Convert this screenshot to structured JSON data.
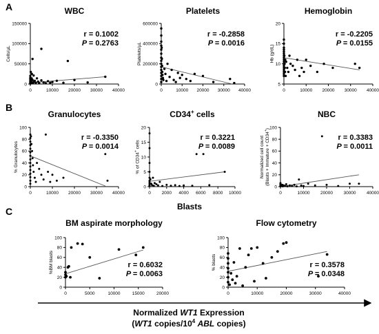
{
  "figure": {
    "panel_labels": [
      "A",
      "B",
      "C"
    ],
    "blasts_heading": "Blasts",
    "bottom_axis": {
      "line1_prefix": "Normalized ",
      "line1_gene": "WT1",
      "line1_suffix": " Expression",
      "line2_open": "(",
      "line2_gene": "WT1",
      "line2_mid": " copies/10",
      "line2_exp": "4",
      "line2_sp": " ",
      "line2_abl": "ABL",
      "line2_close": " copies)"
    },
    "colors": {
      "points": "#000000",
      "trendline": "#555555",
      "axis": "#000000"
    }
  },
  "chart_data": [
    {
      "type": "scatter",
      "title": "WBC",
      "ylabel": "Cells/µL",
      "xlim": [
        0,
        40000
      ],
      "ylim": [
        0,
        150000
      ],
      "xticks": [
        "0",
        "10000",
        "20000",
        "30000",
        "40000"
      ],
      "yticks": [
        "0",
        "50000",
        "100000",
        "150000"
      ],
      "r_label": "r = 0.1002",
      "p_label": "= 0.2763",
      "trend": [
        [
          0,
          3000
        ],
        [
          34000,
          18000
        ]
      ],
      "points": [
        [
          0,
          1000
        ],
        [
          0,
          3000
        ],
        [
          0,
          5000
        ],
        [
          0,
          8000
        ],
        [
          0,
          12000
        ],
        [
          0,
          15000
        ],
        [
          0,
          20000
        ],
        [
          200,
          2000
        ],
        [
          300,
          6000
        ],
        [
          400,
          9000
        ],
        [
          500,
          4000
        ],
        [
          600,
          14000
        ],
        [
          800,
          3000
        ],
        [
          1000,
          10000
        ],
        [
          1200,
          2000
        ],
        [
          1500,
          5000
        ],
        [
          2000,
          8000
        ],
        [
          2500,
          3000
        ],
        [
          3000,
          14000
        ],
        [
          3500,
          6000
        ],
        [
          4000,
          2000
        ],
        [
          5000,
          9000
        ],
        [
          6000,
          4000
        ],
        [
          7000,
          2000
        ],
        [
          8000,
          7000
        ],
        [
          9000,
          3000
        ],
        [
          10000,
          5000
        ],
        [
          12000,
          8000
        ],
        [
          15000,
          3000
        ],
        [
          17000,
          57000
        ],
        [
          20000,
          10000
        ],
        [
          26000,
          4000
        ],
        [
          34000,
          18000
        ],
        [
          1000,
          62000
        ],
        [
          200,
          30000
        ],
        [
          700,
          25000
        ],
        [
          1500,
          21000
        ],
        [
          5000,
          87000
        ]
      ]
    },
    {
      "type": "scatter",
      "title": "Platelets",
      "ylabel": "Platelets/µL",
      "xlim": [
        0,
        40000
      ],
      "ylim": [
        0,
        600000
      ],
      "xticks": [
        "0",
        "10000",
        "20000",
        "30000",
        "40000"
      ],
      "yticks": [
        "0",
        "200000",
        "400000",
        "600000"
      ],
      "r_label": "r = -0.2858",
      "p_label": "= 0.0016",
      "trend": [
        [
          0,
          170000
        ],
        [
          34000,
          0
        ]
      ],
      "points": [
        [
          0,
          550000
        ],
        [
          0,
          480000
        ],
        [
          0,
          420000
        ],
        [
          0,
          380000
        ],
        [
          0,
          340000
        ],
        [
          0,
          300000
        ],
        [
          0,
          260000
        ],
        [
          0,
          230000
        ],
        [
          0,
          200000
        ],
        [
          0,
          170000
        ],
        [
          0,
          140000
        ],
        [
          0,
          110000
        ],
        [
          0,
          80000
        ],
        [
          0,
          50000
        ],
        [
          0,
          20000
        ],
        [
          200,
          360000
        ],
        [
          300,
          250000
        ],
        [
          400,
          180000
        ],
        [
          500,
          120000
        ],
        [
          600,
          90000
        ],
        [
          800,
          60000
        ],
        [
          1000,
          40000
        ],
        [
          1500,
          150000
        ],
        [
          2000,
          100000
        ],
        [
          2500,
          30000
        ],
        [
          3000,
          200000
        ],
        [
          4000,
          70000
        ],
        [
          5000,
          140000
        ],
        [
          6000,
          40000
        ],
        [
          7000,
          20000
        ],
        [
          8000,
          110000
        ],
        [
          9000,
          60000
        ],
        [
          10000,
          90000
        ],
        [
          12000,
          50000
        ],
        [
          14000,
          30000
        ],
        [
          16000,
          100000
        ],
        [
          20000,
          80000
        ],
        [
          25000,
          20000
        ],
        [
          33000,
          50000
        ],
        [
          35000,
          10000
        ]
      ]
    },
    {
      "type": "scatter",
      "title": "Hemoglobin",
      "ylabel": "Hb (g/dL)",
      "xlim": [
        0,
        40000
      ],
      "ylim": [
        5,
        20
      ],
      "xticks": [
        "0",
        "10000",
        "20000",
        "30000",
        "40000"
      ],
      "yticks": [
        "5",
        "10",
        "15",
        "20"
      ],
      "r_label": "r = -0.2205",
      "p_label": "= 0.0155",
      "trend": [
        [
          0,
          11.5
        ],
        [
          34000,
          8.5
        ]
      ],
      "points": [
        [
          0,
          16
        ],
        [
          0,
          15
        ],
        [
          0,
          14
        ],
        [
          0,
          13.5
        ],
        [
          0,
          13
        ],
        [
          0,
          12.5
        ],
        [
          0,
          12
        ],
        [
          0,
          11.5
        ],
        [
          0,
          11
        ],
        [
          0,
          10.5
        ],
        [
          0,
          10
        ],
        [
          0,
          9.5
        ],
        [
          0,
          9
        ],
        [
          0,
          8.5
        ],
        [
          0,
          8
        ],
        [
          0,
          7.5
        ],
        [
          0,
          7
        ],
        [
          200,
          12
        ],
        [
          300,
          10
        ],
        [
          400,
          9
        ],
        [
          500,
          8
        ],
        [
          600,
          11
        ],
        [
          800,
          7
        ],
        [
          1000,
          10.5
        ],
        [
          1500,
          9
        ],
        [
          2000,
          8
        ],
        [
          2500,
          12
        ],
        [
          3000,
          10
        ],
        [
          4000,
          9.5
        ],
        [
          5000,
          8.5
        ],
        [
          6000,
          11
        ],
        [
          7000,
          7
        ],
        [
          8000,
          9
        ],
        [
          9000,
          8
        ],
        [
          10000,
          11
        ],
        [
          12000,
          9.5
        ],
        [
          15000,
          8
        ],
        [
          18000,
          10
        ],
        [
          22000,
          9
        ],
        [
          32000,
          10
        ],
        [
          34000,
          9
        ]
      ]
    },
    {
      "type": "scatter",
      "title": "Granulocytes",
      "ylabel": "% Granulocytes",
      "xlim": [
        0,
        40000
      ],
      "ylim": [
        0,
        100
      ],
      "xticks": [
        "0",
        "10000",
        "20000",
        "30000",
        "40000"
      ],
      "yticks": [
        "0",
        "20",
        "40",
        "60",
        "80",
        "100"
      ],
      "r_label": "r = -0.3350",
      "p_label": "= 0.0014",
      "trend": [
        [
          0,
          52
        ],
        [
          34000,
          1
        ]
      ],
      "points": [
        [
          0,
          88
        ],
        [
          0,
          82
        ],
        [
          0,
          76
        ],
        [
          0,
          70
        ],
        [
          0,
          64
        ],
        [
          0,
          58
        ],
        [
          0,
          52
        ],
        [
          0,
          46
        ],
        [
          0,
          40
        ],
        [
          0,
          34
        ],
        [
          0,
          28
        ],
        [
          0,
          22
        ],
        [
          0,
          16
        ],
        [
          0,
          10
        ],
        [
          0,
          5
        ],
        [
          300,
          85
        ],
        [
          500,
          72
        ],
        [
          800,
          60
        ],
        [
          1000,
          48
        ],
        [
          1200,
          36
        ],
        [
          1500,
          25
        ],
        [
          2000,
          15
        ],
        [
          2500,
          8
        ],
        [
          3000,
          40
        ],
        [
          4000,
          30
        ],
        [
          5000,
          20
        ],
        [
          6000,
          12
        ],
        [
          7000,
          88
        ],
        [
          8000,
          25
        ],
        [
          9000,
          8
        ],
        [
          10000,
          20
        ],
        [
          12000,
          10
        ],
        [
          15000,
          15
        ],
        [
          34000,
          55
        ],
        [
          35000,
          10
        ]
      ]
    },
    {
      "type": "scatter",
      "title": "CD34+ cells",
      "ylabel": "% of CD34+ cells",
      "xlim": [
        0,
        10000
      ],
      "ylim": [
        0,
        20
      ],
      "xticks": [
        "0",
        "2000",
        "4000",
        "6000",
        "8000",
        "10000"
      ],
      "yticks": [
        "0",
        "5",
        "10",
        "15",
        "20"
      ],
      "r_label": "r = 0.3221",
      "p_label": "= 0.0089",
      "trend": [
        [
          0,
          1.8
        ],
        [
          8800,
          5
        ]
      ],
      "points": [
        [
          0,
          18
        ],
        [
          0,
          13
        ],
        [
          0,
          8
        ],
        [
          0,
          5
        ],
        [
          0,
          3
        ],
        [
          0,
          2
        ],
        [
          0,
          1.5
        ],
        [
          0,
          1
        ],
        [
          0,
          0.5
        ],
        [
          0,
          0.2
        ],
        [
          100,
          2.5
        ],
        [
          200,
          1
        ],
        [
          300,
          0.5
        ],
        [
          400,
          3
        ],
        [
          500,
          0.3
        ],
        [
          600,
          1.2
        ],
        [
          800,
          0.8
        ],
        [
          1000,
          0.4
        ],
        [
          1200,
          1.6
        ],
        [
          1500,
          0.2
        ],
        [
          2000,
          0.6
        ],
        [
          2500,
          0.3
        ],
        [
          3000,
          0.5
        ],
        [
          3500,
          0.2
        ],
        [
          4000,
          0.4
        ],
        [
          5000,
          0.3
        ],
        [
          5500,
          11
        ],
        [
          6300,
          11
        ],
        [
          7000,
          0.5
        ],
        [
          8800,
          5
        ]
      ]
    },
    {
      "type": "scatter",
      "title": "NBC",
      "ylabel": "Normalized cell count (Blasts + Immature + CD34+)",
      "xlim": [
        0,
        40000
      ],
      "ylim": [
        0,
        100
      ],
      "xticks": [
        "0",
        "10000",
        "20000",
        "30000",
        "40000"
      ],
      "yticks": [
        "0",
        "20",
        "40",
        "60",
        "80",
        "100"
      ],
      "r_label": "r = 0.3383",
      "p_label": "= 0.0011",
      "trend": [
        [
          0,
          0
        ],
        [
          34000,
          20
        ]
      ],
      "points": [
        [
          0,
          5
        ],
        [
          0,
          3
        ],
        [
          0,
          2
        ],
        [
          0,
          1
        ],
        [
          0,
          0.5
        ],
        [
          0,
          4
        ],
        [
          0,
          6
        ],
        [
          300,
          2
        ],
        [
          500,
          1
        ],
        [
          800,
          3
        ],
        [
          1000,
          0.5
        ],
        [
          1500,
          2
        ],
        [
          2000,
          1
        ],
        [
          2500,
          4
        ],
        [
          3000,
          0.5
        ],
        [
          4000,
          2
        ],
        [
          5000,
          1
        ],
        [
          6000,
          3
        ],
        [
          7000,
          0.5
        ],
        [
          8000,
          12
        ],
        [
          9000,
          2
        ],
        [
          10000,
          1
        ],
        [
          12000,
          5
        ],
        [
          15000,
          2
        ],
        [
          18000,
          85
        ],
        [
          20000,
          3
        ],
        [
          25000,
          1
        ],
        [
          30000,
          5
        ],
        [
          34000,
          5
        ]
      ]
    },
    {
      "type": "scatter",
      "title": "BM aspirate morphology",
      "ylabel": "%BM blasts",
      "xlim": [
        0,
        20000
      ],
      "ylim": [
        0,
        100
      ],
      "xticks": [
        "0",
        "5000",
        "10000",
        "15000",
        "20000"
      ],
      "yticks": [
        "0",
        "20",
        "40",
        "60",
        "80",
        "100"
      ],
      "r_label": "r = 0.6032",
      "p_label": "= 0.0063",
      "trend": [
        [
          0,
          27
        ],
        [
          16000,
          75
        ]
      ],
      "points": [
        [
          0,
          20
        ],
        [
          0,
          25
        ],
        [
          0,
          30
        ],
        [
          200,
          22
        ],
        [
          500,
          40
        ],
        [
          700,
          42
        ],
        [
          1000,
          20
        ],
        [
          1200,
          80
        ],
        [
          2500,
          88
        ],
        [
          3500,
          87
        ],
        [
          5000,
          60
        ],
        [
          7000,
          18
        ],
        [
          11000,
          76
        ],
        [
          14500,
          65
        ],
        [
          16000,
          80
        ]
      ]
    },
    {
      "type": "scatter",
      "title": "Flow cytometry",
      "ylabel": "% blasts",
      "xlim": [
        0,
        40000
      ],
      "ylim": [
        0,
        100
      ],
      "xticks": [
        "0",
        "10000",
        "20000",
        "30000",
        "40000"
      ],
      "yticks": [
        "0",
        "20",
        "40",
        "60",
        "80",
        "100"
      ],
      "r_label": "r = 0.3578",
      "p_label": "= 0.0348",
      "trend": [
        [
          0,
          32
        ],
        [
          34000,
          72
        ]
      ],
      "points": [
        [
          0,
          10
        ],
        [
          0,
          20
        ],
        [
          0,
          30
        ],
        [
          0,
          38
        ],
        [
          0,
          48
        ],
        [
          0,
          58
        ],
        [
          0,
          68
        ],
        [
          500,
          5
        ],
        [
          1000,
          28
        ],
        [
          1500,
          15
        ],
        [
          2000,
          50
        ],
        [
          2500,
          8
        ],
        [
          3000,
          22
        ],
        [
          4000,
          78
        ],
        [
          5000,
          3
        ],
        [
          6000,
          40
        ],
        [
          7000,
          65
        ],
        [
          8000,
          78
        ],
        [
          9000,
          12
        ],
        [
          10000,
          80
        ],
        [
          12000,
          48
        ],
        [
          13000,
          18
        ],
        [
          15000,
          60
        ],
        [
          17000,
          72
        ],
        [
          19000,
          88
        ],
        [
          20000,
          90
        ],
        [
          31000,
          22
        ],
        [
          34000,
          66
        ]
      ]
    }
  ]
}
